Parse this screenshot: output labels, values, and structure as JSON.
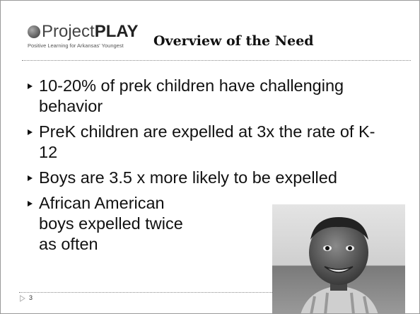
{
  "header": {
    "logo": {
      "name_light": "Project",
      "name_bold": "PLAY",
      "tagline": "Positive Learning for Arkansas' Youngest"
    },
    "title": "Overview of the Need"
  },
  "bullets": [
    "10-20% of prek children have challenging behavior",
    "PreK children are expelled at 3x the rate of K-12",
    "Boys are 3.5 x more likely to be expelled",
    "African American boys expelled twice as often"
  ],
  "footer": {
    "slide_number": "3"
  }
}
